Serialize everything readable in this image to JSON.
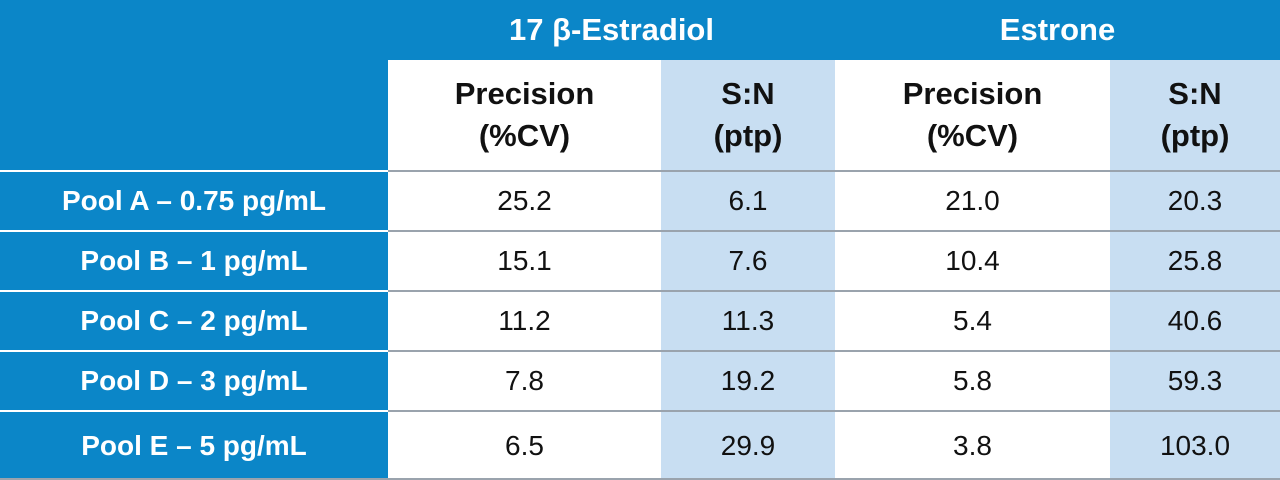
{
  "table": {
    "groups": [
      {
        "label": "17 β-Estradiol"
      },
      {
        "label": "Estrone"
      }
    ],
    "subheaders": [
      {
        "line1": "Precision",
        "line2": "(%CV)"
      },
      {
        "line1": "S:N",
        "line2": "(ptp)"
      },
      {
        "line1": "Precision",
        "line2": "(%CV)"
      },
      {
        "line1": "S:N",
        "line2": "(ptp)"
      }
    ],
    "rows": [
      {
        "label": "Pool A – 0.75 pg/mL",
        "values": [
          "25.2",
          "6.1",
          "21.0",
          "20.3"
        ]
      },
      {
        "label": "Pool B – 1 pg/mL",
        "values": [
          "15.1",
          "7.6",
          "10.4",
          "25.8"
        ]
      },
      {
        "label": "Pool C – 2 pg/mL",
        "values": [
          "11.2",
          "11.3",
          "5.4",
          "40.6"
        ]
      },
      {
        "label": "Pool D – 3 pg/mL",
        "values": [
          "7.8",
          "19.2",
          "5.8",
          "59.3"
        ]
      },
      {
        "label": "Pool E – 5 pg/mL",
        "values": [
          "6.5",
          "29.9",
          "3.8",
          "103.0"
        ]
      }
    ],
    "colors": {
      "header_blue": "#0b86c8",
      "light_blue": "#c8def2",
      "divider": "#9aa3ad"
    }
  }
}
